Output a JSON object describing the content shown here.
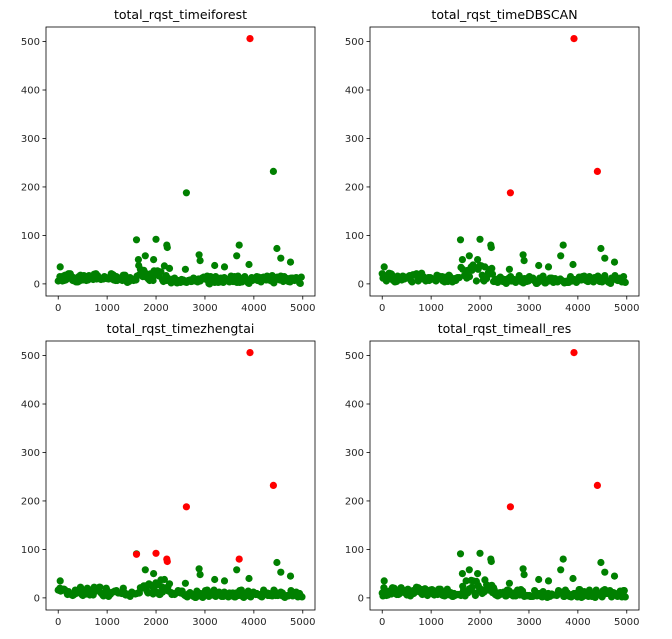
{
  "colors": {
    "normal": "#008000",
    "outlier": "#ff0000",
    "axis": "#000000",
    "tick_label": "#262626"
  },
  "chart_data": [
    {
      "type": "scatter",
      "title": "total_rqst_timeiforest",
      "xlim": [
        -250,
        5250
      ],
      "ylim": [
        -25,
        530
      ],
      "xticks": [
        0,
        1000,
        2000,
        3000,
        4000,
        5000
      ],
      "yticks": [
        0,
        100,
        200,
        300,
        400,
        500
      ],
      "grid": false,
      "series": [
        {
          "color": "#008000",
          "x": [],
          "y": []
        },
        {
          "color": "#ff0000",
          "x": [
            3920
          ],
          "y": [
            506
          ]
        }
      ]
    },
    {
      "type": "scatter",
      "title": "total_rqst_timeDBSCAN",
      "xlim": [
        -250,
        5250
      ],
      "ylim": [
        -25,
        530
      ],
      "xticks": [
        0,
        1000,
        2000,
        3000,
        4000,
        5000
      ],
      "yticks": [
        0,
        100,
        200,
        300,
        400,
        500
      ],
      "grid": false,
      "series": [
        {
          "color": "#008000",
          "x": [],
          "y": []
        },
        {
          "color": "#ff0000",
          "x": [
            2620,
            3920,
            4400
          ],
          "y": [
            188,
            506,
            232
          ]
        }
      ]
    },
    {
      "type": "scatter",
      "title": "total_rqst_timezhengtai",
      "xlim": [
        -250,
        5250
      ],
      "ylim": [
        -25,
        530
      ],
      "xticks": [
        0,
        1000,
        2000,
        3000,
        4000,
        5000
      ],
      "yticks": [
        0,
        100,
        200,
        300,
        400,
        500
      ],
      "grid": false,
      "series": [
        {
          "color": "#008000",
          "x": [],
          "y": []
        },
        {
          "color": "#ff0000",
          "x": [
            1600,
            2000,
            2220,
            2230,
            2620,
            3700,
            3920,
            4400
          ],
          "y": [
            90,
            92,
            80,
            75,
            188,
            80,
            506,
            232
          ]
        }
      ]
    },
    {
      "type": "scatter",
      "title": "total_rqst_timeall_res",
      "xlim": [
        -250,
        5250
      ],
      "ylim": [
        -25,
        530
      ],
      "xticks": [
        0,
        1000,
        2000,
        3000,
        4000,
        5000
      ],
      "yticks": [
        0,
        100,
        200,
        300,
        400,
        500
      ],
      "grid": false,
      "series": [
        {
          "color": "#008000",
          "x": [],
          "y": []
        },
        {
          "color": "#ff0000",
          "x": [
            2620,
            3920,
            4400
          ],
          "y": [
            188,
            506,
            232
          ]
        }
      ]
    }
  ]
}
